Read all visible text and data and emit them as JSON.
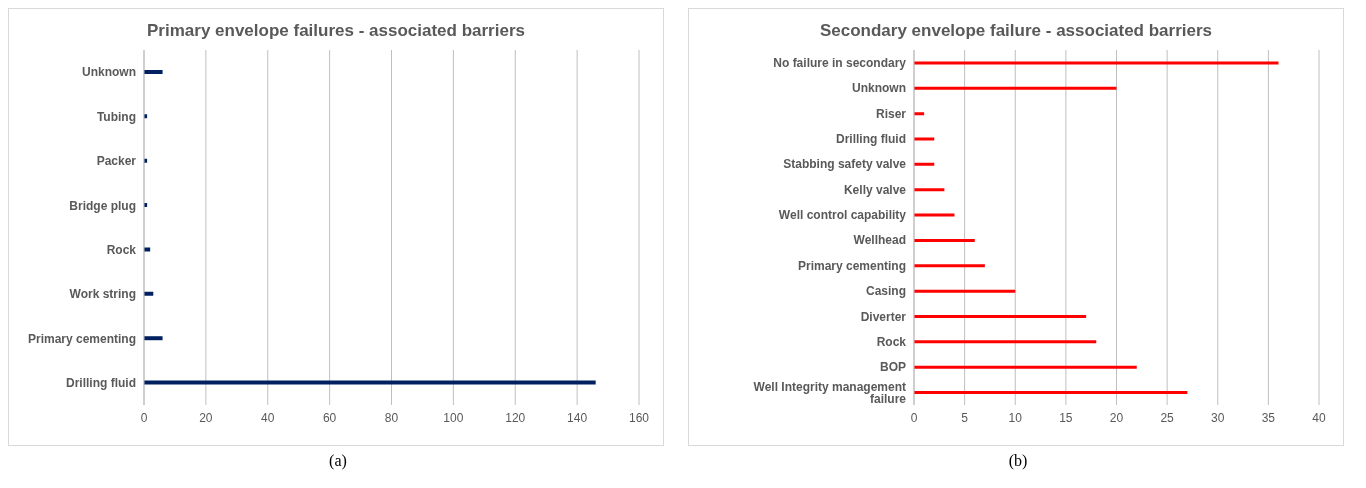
{
  "chart_data": [
    {
      "type": "bar",
      "orientation": "horizontal",
      "title": "Primary envelope failures - associated barriers",
      "categories": [
        "Unknown",
        "Tubing",
        "Packer",
        "Bridge plug",
        "Rock",
        "Work string",
        "Primary cementing",
        "Drilling fluid"
      ],
      "values": [
        6,
        1,
        1,
        1,
        2,
        3,
        6,
        146
      ],
      "color": "#002060",
      "xlim": [
        0,
        160
      ],
      "xticks": [
        0,
        20,
        40,
        60,
        80,
        100,
        120,
        140,
        160
      ],
      "grid": "x",
      "annotations": [
        "(a)"
      ]
    },
    {
      "type": "bar",
      "orientation": "horizontal",
      "title": "Secondary envelope failure - associated barriers",
      "categories": [
        "No failure in secondary",
        "Unknown",
        "Riser",
        "Drilling fluid",
        "Stabbing safety valve",
        "Kelly valve",
        "Well control capability",
        "Wellhead",
        "Primary cementing",
        "Casing",
        "Diverter",
        "Rock",
        "BOP",
        "Well Integrity management failure"
      ],
      "values": [
        36,
        20,
        1,
        2,
        2,
        3,
        4,
        6,
        7,
        10,
        17,
        18,
        22,
        27
      ],
      "color": "#ff0000",
      "xlim": [
        0,
        40
      ],
      "xticks": [
        0,
        5,
        10,
        15,
        20,
        25,
        30,
        35,
        40
      ],
      "grid": "x",
      "annotations": [
        "(b)"
      ]
    }
  ]
}
